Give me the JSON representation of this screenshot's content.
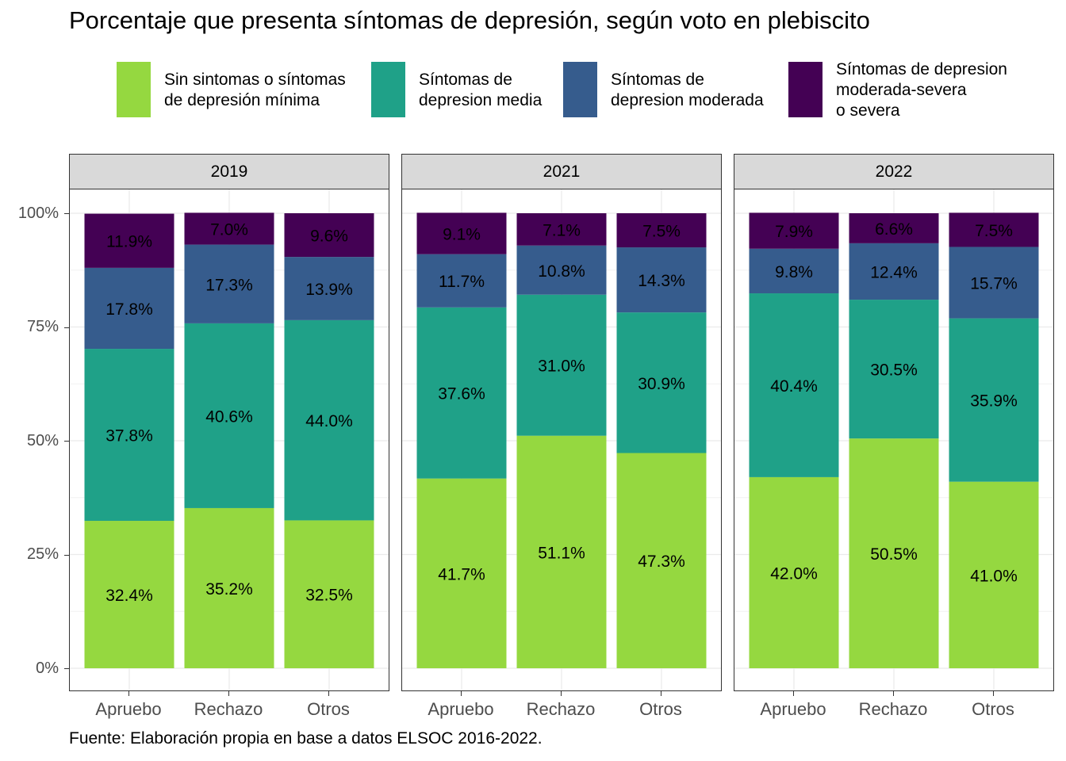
{
  "chart_data": {
    "type": "bar",
    "stacked": true,
    "title": "Porcentaje que presenta síntomas de depresión, según voto en plebiscito",
    "caption": "Fuente: Elaboración propia en base a datos ELSOC 2016-2022.",
    "categories": [
      "Apruebo",
      "Rechazo",
      "Otros"
    ],
    "yticks": [
      "0%",
      "25%",
      "50%",
      "75%",
      "100%"
    ],
    "ylim": [
      0,
      100
    ],
    "grid": true,
    "legend_position": "top",
    "series_legend": [
      {
        "name": "Sin sintomas o síntomas\nde depresión mínima",
        "color": "#95D840"
      },
      {
        "name": "Síntomas de\ndepresion media",
        "color": "#1FA188"
      },
      {
        "name": "Síntomas de\ndepresion moderada",
        "color": "#365C8D"
      },
      {
        "name": "Síntomas de depresion\nmoderada-severa\no severa",
        "color": "#440154"
      }
    ],
    "panels": [
      {
        "label": "2019",
        "series": [
          {
            "values": [
              32.4,
              35.2,
              32.5
            ],
            "labels": [
              "32.4%",
              "35.2%",
              "32.5%"
            ]
          },
          {
            "values": [
              37.8,
              40.6,
              44.0
            ],
            "labels": [
              "37.8%",
              "40.6%",
              "44.0%"
            ]
          },
          {
            "values": [
              17.8,
              17.3,
              13.9
            ],
            "labels": [
              "17.8%",
              "17.3%",
              "13.9%"
            ]
          },
          {
            "values": [
              11.9,
              7.0,
              9.6
            ],
            "labels": [
              "11.9%",
              "7.0%",
              "9.6%"
            ]
          }
        ]
      },
      {
        "label": "2021",
        "series": [
          {
            "values": [
              41.7,
              51.1,
              47.3
            ],
            "labels": [
              "41.7%",
              "51.1%",
              "47.3%"
            ]
          },
          {
            "values": [
              37.6,
              31.0,
              30.9
            ],
            "labels": [
              "37.6%",
              "31.0%",
              "30.9%"
            ]
          },
          {
            "values": [
              11.7,
              10.8,
              14.3
            ],
            "labels": [
              "11.7%",
              "10.8%",
              "14.3%"
            ]
          },
          {
            "values": [
              9.1,
              7.1,
              7.5
            ],
            "labels": [
              "9.1%",
              "7.1%",
              "7.5%"
            ]
          }
        ]
      },
      {
        "label": "2022",
        "series": [
          {
            "values": [
              42.0,
              50.5,
              41.0
            ],
            "labels": [
              "42.0%",
              "50.5%",
              "41.0%"
            ]
          },
          {
            "values": [
              40.4,
              30.5,
              35.9
            ],
            "labels": [
              "40.4%",
              "30.5%",
              "35.9%"
            ]
          },
          {
            "values": [
              9.8,
              12.4,
              15.7
            ],
            "labels": [
              "9.8%",
              "12.4%",
              "15.7%"
            ]
          },
          {
            "values": [
              7.9,
              6.6,
              7.5
            ],
            "labels": [
              "7.9%",
              "6.6%",
              "7.5%"
            ]
          }
        ]
      }
    ]
  }
}
